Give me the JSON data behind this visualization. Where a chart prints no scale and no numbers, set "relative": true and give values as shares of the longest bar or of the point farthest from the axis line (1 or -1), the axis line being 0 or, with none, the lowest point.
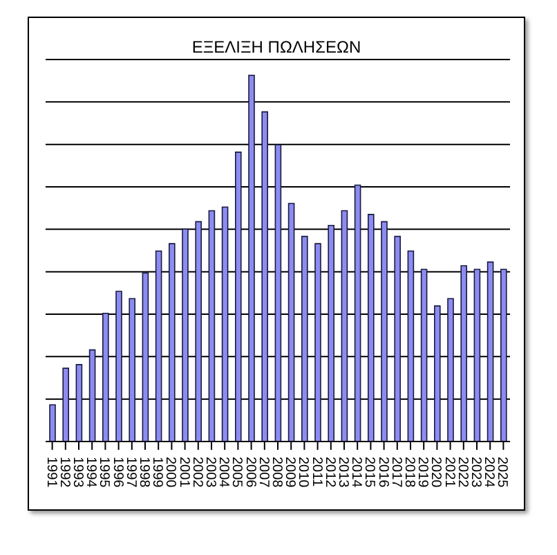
{
  "chart_data": {
    "type": "bar",
    "title": "ΕΞΕΛΙΞΗ ΠΩΛΗΣΕΩΝ",
    "relative": true,
    "grid": "y",
    "color": "#8c8cf0",
    "categories": [
      "1991",
      "1992",
      "1993",
      "1994",
      "1995",
      "1996",
      "1997",
      "1998",
      "1999",
      "2000",
      "2001",
      "2002",
      "2003",
      "2004",
      "2005",
      "2006",
      "2007",
      "2008",
      "2009",
      "2010",
      "2011",
      "2012",
      "2013",
      "2014",
      "2015",
      "2016",
      "2017",
      "2018",
      "2019",
      "2020",
      "2021",
      "2022",
      "2023",
      "2024",
      "2025"
    ],
    "values": [
      0.1,
      0.2,
      0.21,
      0.25,
      0.35,
      0.41,
      0.39,
      0.46,
      0.52,
      0.54,
      0.58,
      0.6,
      0.63,
      0.64,
      0.79,
      1,
      0.9,
      0.81,
      0.65,
      0.56,
      0.54,
      0.59,
      0.63,
      0.7,
      0.62,
      0.6,
      0.56,
      0.52,
      0.47,
      0.37,
      0.39,
      0.48,
      0.47,
      0.49,
      0.47
    ]
  }
}
